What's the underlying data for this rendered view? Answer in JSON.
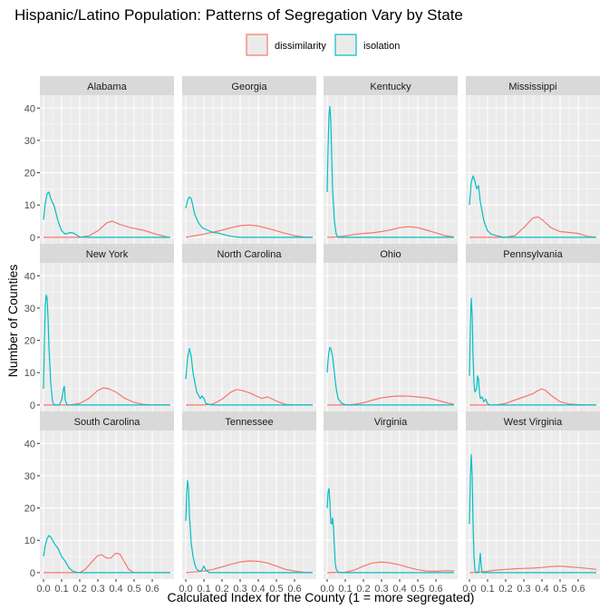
{
  "chart_data": {
    "type": "line",
    "title": "Hispanic/Latino Population: Patterns of Segregation Vary by State",
    "xlabel": "Calculated Index for the County (1 = more segregated)",
    "ylabel": "Number of Counties",
    "xlim": [
      -0.02,
      0.72
    ],
    "ylim": [
      -2,
      44
    ],
    "x_ticks": [
      0.0,
      0.1,
      0.2,
      0.3,
      0.4,
      0.5,
      0.6
    ],
    "y_ticks": [
      0,
      10,
      20,
      30,
      40
    ],
    "x_tick_labels": [
      "0.0",
      "0.1",
      "0.2",
      "0.3",
      "0.4",
      "0.5",
      "0.6"
    ],
    "y_tick_labels": [
      "0",
      "10",
      "20",
      "30",
      "40"
    ],
    "grid": true,
    "legend_position": "top",
    "legend": [
      {
        "name": "dissimilarity",
        "color": "#F8766D"
      },
      {
        "name": "isolation",
        "color": "#00BFC4"
      }
    ],
    "panels": [
      {
        "state": "Alabama",
        "series": [
          {
            "name": "dissimilarity",
            "color": "#F8766D",
            "x": [
              0.0,
              0.2,
              0.25,
              0.3,
              0.35,
              0.38,
              0.42,
              0.48,
              0.55,
              0.62,
              0.68,
              0.7
            ],
            "y": [
              0,
              0,
              0.4,
              2.0,
              4.5,
              5.0,
              4.0,
              3.0,
              2.2,
              1.0,
              0.1,
              0
            ]
          },
          {
            "name": "isolation",
            "color": "#00BFC4",
            "x": [
              0.0,
              0.01,
              0.02,
              0.03,
              0.04,
              0.06,
              0.08,
              0.1,
              0.12,
              0.15,
              0.17,
              0.2,
              0.25,
              0.7
            ],
            "y": [
              5.5,
              10.5,
              13.5,
              14.0,
              12.0,
              9.5,
              5.0,
              2.0,
              1.0,
              1.5,
              1.2,
              0.1,
              0,
              0
            ]
          }
        ]
      },
      {
        "state": "Georgia",
        "series": [
          {
            "name": "dissimilarity",
            "color": "#F8766D",
            "x": [
              0.0,
              0.05,
              0.1,
              0.15,
              0.2,
              0.25,
              0.3,
              0.35,
              0.4,
              0.45,
              0.5,
              0.55,
              0.6,
              0.65,
              0.7
            ],
            "y": [
              0,
              0.5,
              1.0,
              1.6,
              2.2,
              3.0,
              3.6,
              3.8,
              3.5,
              2.8,
              2.0,
              1.2,
              0.5,
              0.1,
              0
            ]
          },
          {
            "name": "isolation",
            "color": "#00BFC4",
            "x": [
              0.0,
              0.01,
              0.02,
              0.03,
              0.05,
              0.07,
              0.09,
              0.12,
              0.15,
              0.18,
              0.2,
              0.22,
              0.25,
              0.3,
              0.7
            ],
            "y": [
              9.0,
              11.5,
              12.5,
              12.0,
              7.0,
              4.5,
              3.0,
              2.2,
              1.5,
              1.3,
              1.0,
              0.7,
              0.3,
              0,
              0
            ]
          }
        ]
      },
      {
        "state": "Kentucky",
        "series": [
          {
            "name": "dissimilarity",
            "color": "#F8766D",
            "x": [
              0.0,
              0.05,
              0.1,
              0.15,
              0.2,
              0.25,
              0.3,
              0.35,
              0.4,
              0.45,
              0.5,
              0.55,
              0.6,
              0.65,
              0.7
            ],
            "y": [
              0,
              0.1,
              0.4,
              0.9,
              1.2,
              1.4,
              1.8,
              2.3,
              3.0,
              3.3,
              3.0,
              2.2,
              1.4,
              0.5,
              0.1
            ]
          },
          {
            "name": "isolation",
            "color": "#00BFC4",
            "x": [
              0.0,
              0.005,
              0.01,
              0.015,
              0.02,
              0.025,
              0.03,
              0.035,
              0.04,
              0.05,
              0.06,
              0.7
            ],
            "y": [
              14.0,
              28.0,
              38.0,
              40.5,
              36.0,
              25.0,
              15.0,
              10.0,
              5.0,
              1.0,
              0,
              0
            ]
          }
        ]
      },
      {
        "state": "Mississippi",
        "series": [
          {
            "name": "dissimilarity",
            "color": "#F8766D",
            "x": [
              0.0,
              0.2,
              0.25,
              0.3,
              0.35,
              0.38,
              0.4,
              0.45,
              0.5,
              0.55,
              0.6,
              0.65,
              0.7
            ],
            "y": [
              0,
              0,
              0.5,
              3.0,
              6.0,
              6.3,
              5.5,
              3.0,
              1.8,
              1.5,
              1.2,
              0.3,
              0
            ]
          },
          {
            "name": "isolation",
            "color": "#00BFC4",
            "x": [
              0.0,
              0.01,
              0.02,
              0.03,
              0.04,
              0.05,
              0.06,
              0.08,
              0.1,
              0.12,
              0.15,
              0.18,
              0.2,
              0.7
            ],
            "y": [
              10.0,
              17.0,
              19.0,
              17.5,
              15.0,
              16.0,
              11.0,
              5.0,
              2.0,
              1.0,
              0.5,
              0.1,
              0,
              0
            ]
          }
        ]
      },
      {
        "state": "New York",
        "series": [
          {
            "name": "dissimilarity",
            "color": "#F8766D",
            "x": [
              0.0,
              0.15,
              0.2,
              0.25,
              0.3,
              0.33,
              0.36,
              0.4,
              0.45,
              0.5,
              0.55,
              0.6,
              0.7
            ],
            "y": [
              0,
              0,
              0.5,
              2.0,
              4.5,
              5.3,
              5.0,
              4.0,
              2.0,
              0.8,
              0.2,
              0,
              0
            ]
          },
          {
            "name": "isolation",
            "color": "#00BFC4",
            "x": [
              0.0,
              0.005,
              0.01,
              0.015,
              0.02,
              0.025,
              0.03,
              0.04,
              0.05,
              0.06,
              0.08,
              0.09,
              0.1,
              0.11,
              0.115,
              0.12,
              0.13,
              0.7
            ],
            "y": [
              5.0,
              20.0,
              31.0,
              34.0,
              33.0,
              27.0,
              18.0,
              7.0,
              1.0,
              0,
              0,
              0.2,
              1.5,
              5.0,
              5.8,
              1.5,
              0,
              0
            ]
          }
        ]
      },
      {
        "state": "North Carolina",
        "series": [
          {
            "name": "dissimilarity",
            "color": "#F8766D",
            "x": [
              0.0,
              0.1,
              0.15,
              0.2,
              0.25,
              0.28,
              0.31,
              0.35,
              0.38,
              0.42,
              0.45,
              0.48,
              0.5,
              0.55,
              0.6,
              0.7
            ],
            "y": [
              0,
              0,
              0.3,
              1.8,
              4.0,
              4.8,
              4.5,
              3.8,
              3.0,
              2.0,
              2.5,
              1.8,
              1.2,
              0.2,
              0,
              0
            ]
          },
          {
            "name": "isolation",
            "color": "#00BFC4",
            "x": [
              0.0,
              0.01,
              0.02,
              0.03,
              0.04,
              0.05,
              0.06,
              0.08,
              0.09,
              0.1,
              0.11,
              0.13,
              0.15,
              0.7
            ],
            "y": [
              8.0,
              14.5,
              17.5,
              15.0,
              10.0,
              7.0,
              4.0,
              2.0,
              2.8,
              2.0,
              0.5,
              0.1,
              0,
              0
            ]
          }
        ]
      },
      {
        "state": "Ohio",
        "series": [
          {
            "name": "dissimilarity",
            "color": "#F8766D",
            "x": [
              0.0,
              0.1,
              0.15,
              0.2,
              0.25,
              0.3,
              0.35,
              0.4,
              0.45,
              0.5,
              0.55,
              0.6,
              0.65,
              0.7
            ],
            "y": [
              0,
              0,
              0.2,
              0.7,
              1.5,
              2.2,
              2.6,
              2.8,
              2.7,
              2.5,
              2.2,
              1.6,
              0.8,
              0.2
            ]
          },
          {
            "name": "isolation",
            "color": "#00BFC4",
            "x": [
              0.0,
              0.005,
              0.01,
              0.015,
              0.02,
              0.03,
              0.04,
              0.05,
              0.06,
              0.08,
              0.1,
              0.12,
              0.15,
              0.7
            ],
            "y": [
              10.0,
              14.0,
              16.5,
              17.8,
              17.5,
              15.0,
              10.0,
              5.0,
              2.0,
              0.5,
              0.1,
              0,
              0,
              0
            ]
          }
        ]
      },
      {
        "state": "Pennsylvania",
        "series": [
          {
            "name": "dissimilarity",
            "color": "#F8766D",
            "x": [
              0.0,
              0.15,
              0.2,
              0.25,
              0.3,
              0.35,
              0.38,
              0.4,
              0.42,
              0.45,
              0.5,
              0.55,
              0.6,
              0.65,
              0.7
            ],
            "y": [
              0,
              0,
              0.5,
              1.5,
              2.5,
              3.5,
              4.5,
              5.0,
              4.5,
              3.0,
              1.0,
              0.3,
              0.1,
              0,
              0
            ]
          },
          {
            "name": "isolation",
            "color": "#00BFC4",
            "x": [
              0.0,
              0.005,
              0.01,
              0.015,
              0.02,
              0.025,
              0.03,
              0.04,
              0.045,
              0.05,
              0.055,
              0.06,
              0.07,
              0.08,
              0.09,
              0.1,
              0.11,
              0.7
            ],
            "y": [
              9.0,
              25.0,
              33.0,
              28.0,
              15.0,
              7.0,
              4.0,
              5.0,
              9.0,
              8.0,
              4.0,
              2.0,
              2.5,
              1.0,
              1.8,
              0.5,
              0,
              0
            ]
          }
        ]
      },
      {
        "state": "South Carolina",
        "series": [
          {
            "name": "dissimilarity",
            "color": "#F8766D",
            "x": [
              0.0,
              0.2,
              0.23,
              0.27,
              0.3,
              0.32,
              0.35,
              0.37,
              0.4,
              0.42,
              0.45,
              0.47,
              0.5,
              0.7
            ],
            "y": [
              0,
              0,
              1.0,
              3.5,
              5.3,
              5.5,
              4.5,
              4.5,
              6.0,
              5.8,
              3.0,
              1.0,
              0,
              0
            ]
          },
          {
            "name": "isolation",
            "color": "#00BFC4",
            "x": [
              0.0,
              0.01,
              0.02,
              0.03,
              0.04,
              0.05,
              0.06,
              0.08,
              0.1,
              0.12,
              0.14,
              0.16,
              0.18,
              0.2,
              0.7
            ],
            "y": [
              5.0,
              8.5,
              10.5,
              11.5,
              11.0,
              10.0,
              9.0,
              7.5,
              5.0,
              3.5,
              1.5,
              0.5,
              0.1,
              0,
              0
            ]
          }
        ]
      },
      {
        "state": "Tennessee",
        "series": [
          {
            "name": "dissimilarity",
            "color": "#F8766D",
            "x": [
              0.0,
              0.05,
              0.1,
              0.15,
              0.2,
              0.25,
              0.3,
              0.35,
              0.4,
              0.45,
              0.5,
              0.55,
              0.6,
              0.65,
              0.7
            ],
            "y": [
              0,
              0.2,
              0.5,
              1.0,
              1.8,
              2.6,
              3.3,
              3.6,
              3.5,
              3.0,
              2.0,
              1.0,
              0.5,
              0.1,
              0
            ]
          },
          {
            "name": "isolation",
            "color": "#00BFC4",
            "x": [
              0.0,
              0.005,
              0.01,
              0.015,
              0.02,
              0.03,
              0.04,
              0.05,
              0.06,
              0.08,
              0.09,
              0.1,
              0.11,
              0.13,
              0.7
            ],
            "y": [
              16.0,
              25.0,
              28.5,
              26.0,
              18.0,
              9.0,
              5.0,
              2.5,
              1.0,
              0.3,
              1.0,
              2.0,
              0.8,
              0,
              0
            ]
          }
        ]
      },
      {
        "state": "Virginia",
        "series": [
          {
            "name": "dissimilarity",
            "color": "#F8766D",
            "x": [
              0.0,
              0.1,
              0.15,
              0.2,
              0.25,
              0.3,
              0.35,
              0.4,
              0.45,
              0.5,
              0.55,
              0.6,
              0.65,
              0.7
            ],
            "y": [
              0,
              0.1,
              0.8,
              2.0,
              3.0,
              3.3,
              3.0,
              2.4,
              1.6,
              0.9,
              0.5,
              0.4,
              0.6,
              0.5
            ]
          },
          {
            "name": "isolation",
            "color": "#00BFC4",
            "x": [
              0.0,
              0.005,
              0.01,
              0.015,
              0.02,
              0.025,
              0.03,
              0.035,
              0.04,
              0.045,
              0.05,
              0.06,
              0.07,
              0.08,
              0.7
            ],
            "y": [
              20.0,
              25.0,
              26.0,
              22.0,
              15.5,
              15.0,
              17.0,
              14.0,
              8.0,
              3.0,
              1.0,
              0.2,
              0,
              0,
              0
            ]
          }
        ]
      },
      {
        "state": "West Virginia",
        "series": [
          {
            "name": "dissimilarity",
            "color": "#F8766D",
            "x": [
              0.0,
              0.05,
              0.1,
              0.15,
              0.2,
              0.25,
              0.3,
              0.35,
              0.4,
              0.45,
              0.5,
              0.55,
              0.6,
              0.65,
              0.7
            ],
            "y": [
              0,
              0.1,
              0.4,
              0.8,
              1.0,
              1.2,
              1.3,
              1.4,
              1.6,
              1.9,
              2.0,
              1.8,
              1.6,
              1.3,
              1.0
            ]
          },
          {
            "name": "isolation",
            "color": "#00BFC4",
            "x": [
              0.0,
              0.005,
              0.01,
              0.015,
              0.02,
              0.025,
              0.03,
              0.035,
              0.04,
              0.05,
              0.055,
              0.06,
              0.065,
              0.07,
              0.7
            ],
            "y": [
              15.0,
              30.0,
              36.5,
              30.0,
              15.0,
              5.0,
              1.0,
              0.2,
              0,
              0,
              3.0,
              6.0,
              2.0,
              0,
              0
            ]
          }
        ]
      }
    ]
  }
}
